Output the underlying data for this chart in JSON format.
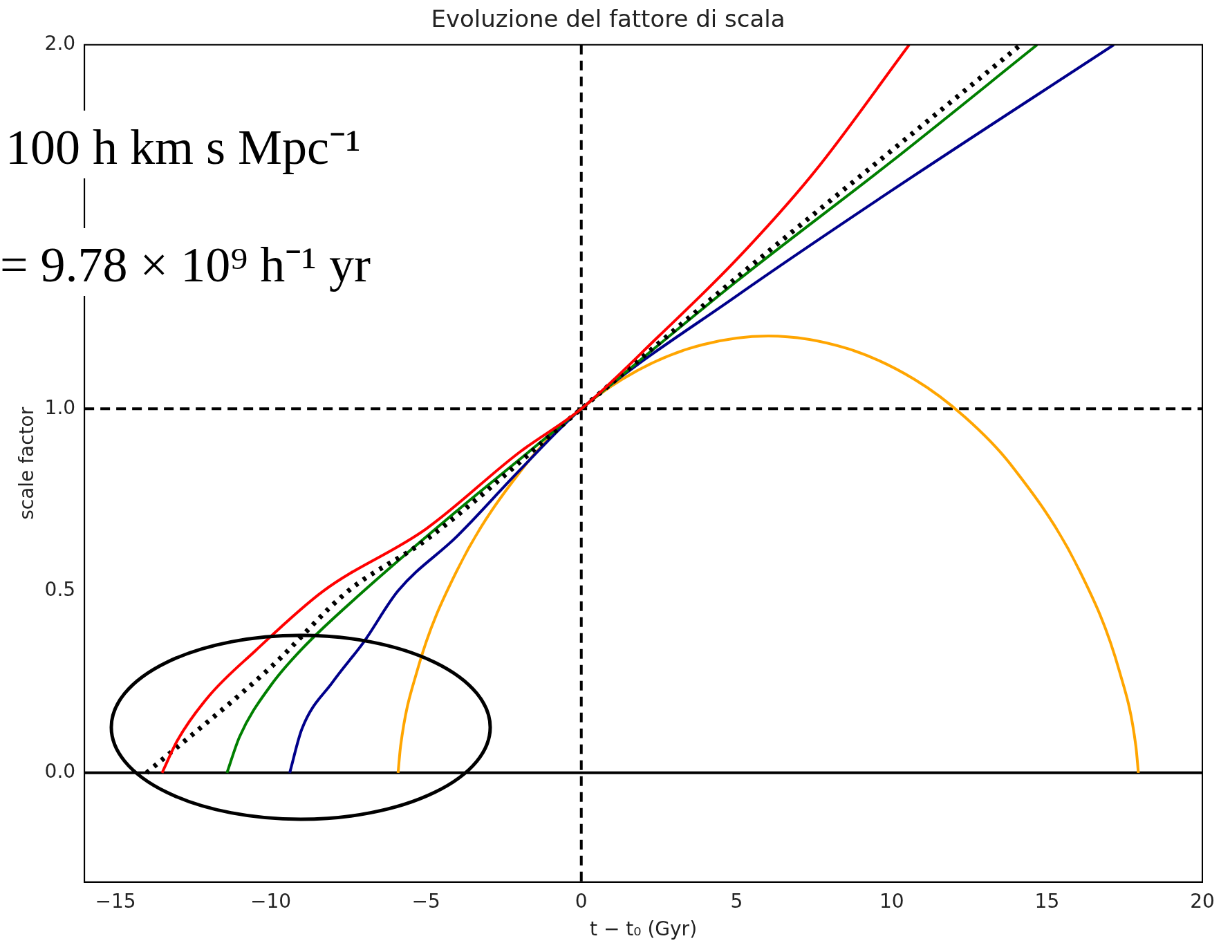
{
  "chart_data": {
    "type": "line",
    "title": "Evoluzione del fattore di scala",
    "xlabel": "t − t₀ (Gyr)",
    "ylabel": "scale factor",
    "xlim": [
      -16,
      20
    ],
    "ylim": [
      -0.3,
      2.0
    ],
    "xticks": [
      {
        "value": -15,
        "label": "−15"
      },
      {
        "value": -10,
        "label": "−10"
      },
      {
        "value": -5,
        "label": "−5"
      },
      0,
      5,
      10,
      15,
      20
    ],
    "yticks": [
      {
        "value": 0,
        "label": "0.0"
      },
      {
        "value": 0.5,
        "label": "0.5"
      },
      {
        "value": 1,
        "label": "1.0"
      },
      {
        "value": 2,
        "label": "2.0"
      }
    ],
    "grid": false,
    "legend": false,
    "marker": "none",
    "series": [
      {
        "color": "#ff0000",
        "line_style": "solid",
        "x": [
          -13.5,
          -13,
          -12,
          -10.5,
          -8.3,
          -5,
          -2,
          0,
          2.5,
          5,
          7.5,
          10.56
        ],
        "values": [
          0,
          0.09,
          0.21,
          0.335,
          0.5,
          0.67,
          0.88,
          1,
          1.2,
          1.41,
          1.65,
          2
        ]
      },
      {
        "color": "#000000",
        "line_style": "dotted",
        "x": [
          -14,
          -10,
          -7.5,
          -5,
          0,
          5,
          10,
          14.15
        ],
        "values": [
          0,
          0.29,
          0.5,
          0.64,
          1,
          1.36,
          1.71,
          2
        ]
      },
      {
        "color": "#007f00",
        "line_style": "solid",
        "x": [
          -11.41,
          -11,
          -10,
          -9,
          -7,
          -4,
          -2,
          0,
          5,
          10,
          14.68
        ],
        "values": [
          0,
          0.1,
          0.24,
          0.34,
          0.5,
          0.72,
          0.86,
          1,
          1.35,
          1.68,
          2
        ]
      },
      {
        "color": "#00008b",
        "line_style": "solid",
        "x": [
          -9.39,
          -9,
          -8,
          -7,
          -5.9,
          -4,
          -2,
          0,
          5,
          10,
          17.15
        ],
        "values": [
          0,
          0.12,
          0.25,
          0.36,
          0.5,
          0.65,
          0.83,
          1,
          1.31,
          1.6,
          2
        ]
      },
      {
        "color": "#ffa500",
        "line_style": "solid",
        "x": [
          -5.9,
          -5.82,
          -5.3,
          -3.99,
          -1.76,
          -0.32,
          1.31,
          3.45,
          6.02,
          8.59,
          10.73,
          12.36,
          13.8,
          16.03,
          17.34,
          17.86,
          17.94
        ],
        "values": [
          0,
          0.073,
          0.276,
          0.558,
          0.85,
          0.977,
          1.081,
          1.165,
          1.2,
          1.165,
          1.081,
          0.977,
          0.85,
          0.558,
          0.276,
          0.073,
          0
        ]
      }
    ],
    "ref_lines": [
      {
        "axis": "x",
        "value": 0,
        "color": "#000000",
        "line_style": "dashed"
      },
      {
        "axis": "y",
        "value": 1,
        "color": "#000000",
        "line_style": "dashed"
      },
      {
        "axis": "y",
        "value": 0,
        "color": "#000000",
        "line_style": "solid"
      }
    ],
    "annotations": [
      "100 h km s Mpc⁻¹",
      "= 9.78 × 10⁹ h⁻¹ yr"
    ]
  }
}
